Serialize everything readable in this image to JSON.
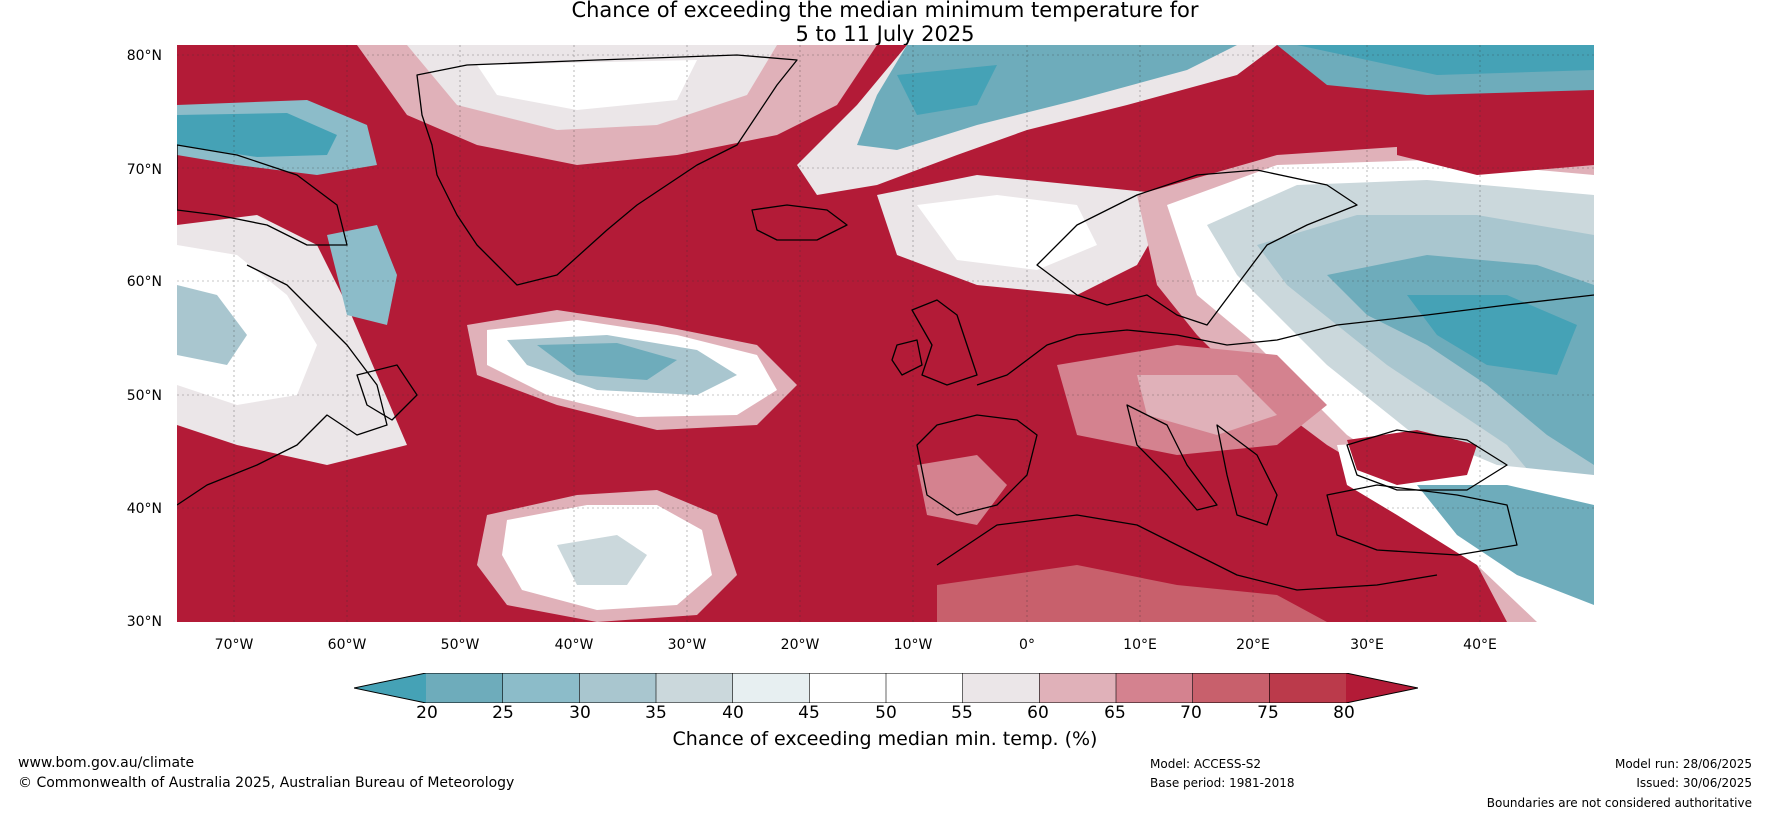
{
  "title": {
    "line1": "Chance of exceeding the median minimum temperature for",
    "line2": "5 to 11 July 2025"
  },
  "lat_labels": [
    "80°N",
    "70°N",
    "60°N",
    "50°N",
    "40°N",
    "30°N"
  ],
  "lon_labels": [
    "70°W",
    "60°W",
    "50°W",
    "40°W",
    "30°W",
    "20°W",
    "10°W",
    "0°",
    "10°E",
    "20°E",
    "30°E",
    "40°E"
  ],
  "colorbar": {
    "ticks": [
      "20",
      "25",
      "30",
      "35",
      "40",
      "45",
      "50",
      "55",
      "60",
      "65",
      "70",
      "75",
      "80"
    ],
    "colors": [
      "#45a2b6",
      "#6eacbb",
      "#8cbcc9",
      "#a9c6cf",
      "#cbd8dc",
      "#e7eff1",
      "#ffffff",
      "#ffffff",
      "#ebe6e8",
      "#e0b1b9",
      "#d4828f",
      "#c8606c",
      "#bb3a4b",
      "#b31b37"
    ],
    "label": "Chance of exceeding median min. temp. (%)"
  },
  "footer": {
    "website": "www.bom.gov.au/climate",
    "copyright": "© Commonwealth of Australia 2025, Australian Bureau of Meteorology",
    "model": "Model: ACCESS-S2",
    "base_period": "Base period: 1981-2018",
    "model_run": "Model run: 28/06/2025",
    "issued": "Issued: 30/06/2025",
    "disclaimer": "Boundaries are not considered authoritative"
  }
}
